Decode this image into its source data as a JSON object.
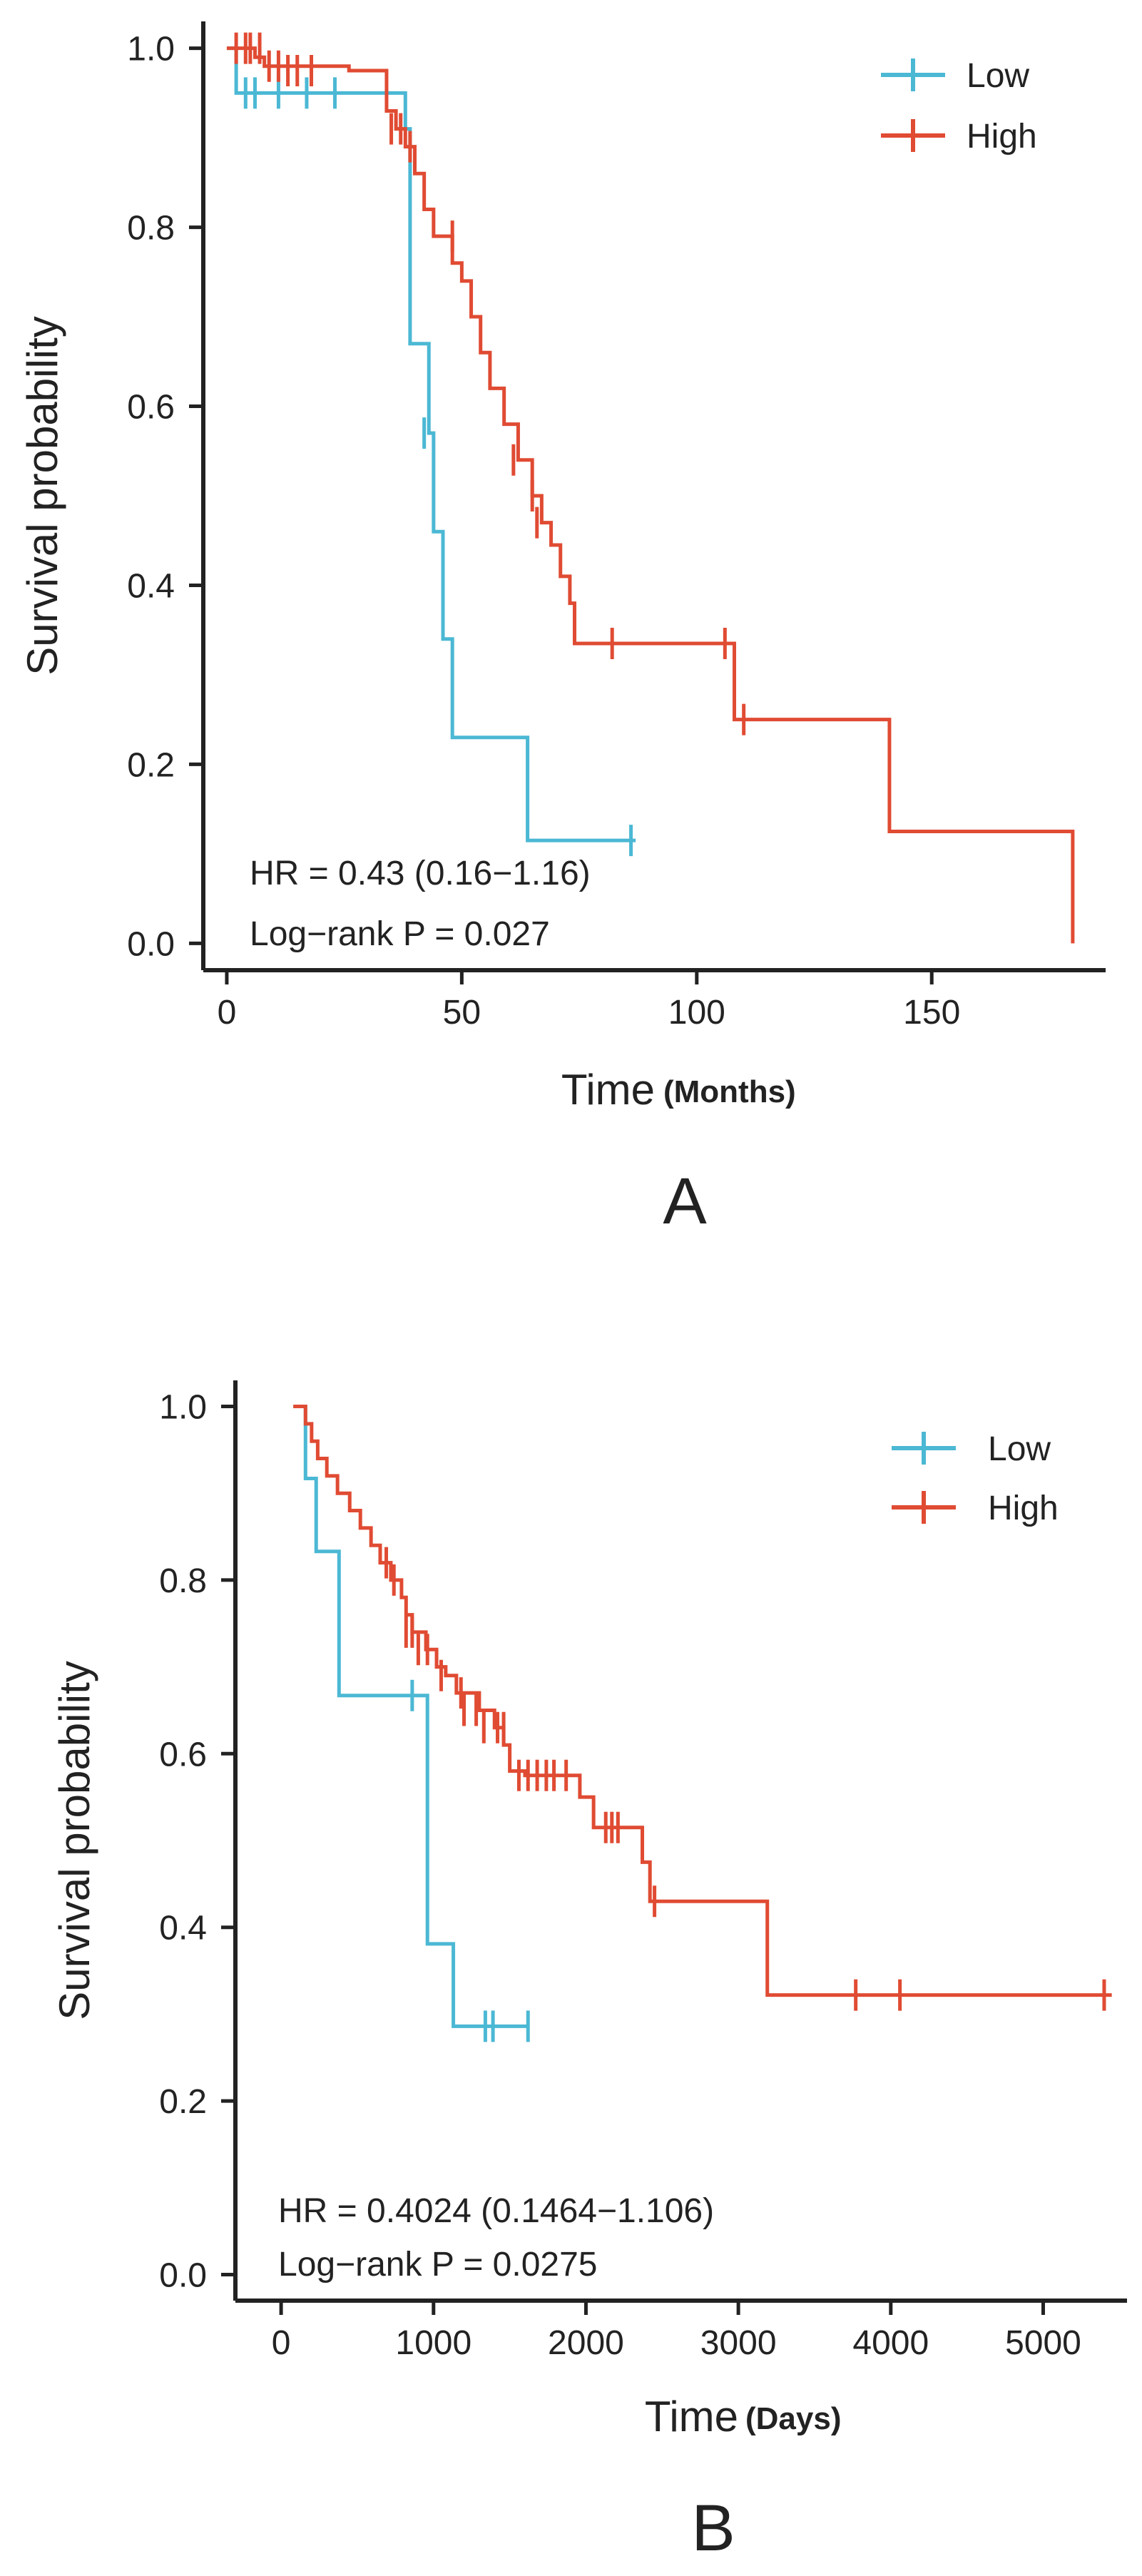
{
  "chart_data": [
    {
      "type": "line",
      "panel_label": "A",
      "ylabel": "Survival probability",
      "xlabel": "Time",
      "xunit": "(Months)",
      "xlim": [
        -5,
        187
      ],
      "ylim": [
        -0.03,
        1.03
      ],
      "xticks": [
        0,
        50,
        100,
        150
      ],
      "xtick_labels": [
        "0",
        "50",
        "100",
        "150"
      ],
      "yticks": [
        0,
        0.2,
        0.4,
        0.6,
        0.8,
        1.0
      ],
      "ytick_labels": [
        "0.0",
        "0.2",
        "0.4",
        "0.6",
        "0.8",
        "1.0"
      ],
      "legend_position": "top-right",
      "hr_text": "HR = 0.43 (0.16−1.16)",
      "p_text": "Log−rank P = 0.027",
      "series": [
        {
          "name": "Low",
          "color": "#4BB8D4",
          "steps": [
            [
              0,
              1.0
            ],
            [
              2,
              0.95
            ],
            [
              38,
              0.91
            ],
            [
              39,
              0.67
            ],
            [
              43,
              0.57
            ],
            [
              44,
              0.46
            ],
            [
              46,
              0.34
            ],
            [
              48,
              0.23
            ],
            [
              64,
              0.115
            ],
            [
              87,
              0.115
            ]
          ],
          "censor": [
            [
              4,
              0.95
            ],
            [
              6,
              0.95
            ],
            [
              11,
              0.95
            ],
            [
              17,
              0.95
            ],
            [
              23,
              0.95
            ],
            [
              42,
              0.57
            ],
            [
              86,
              0.115
            ]
          ]
        },
        {
          "name": "High",
          "color": "#E04B33",
          "steps": [
            [
              0,
              1.0
            ],
            [
              6,
              0.99
            ],
            [
              8,
              0.98
            ],
            [
              26,
              0.975
            ],
            [
              34,
              0.93
            ],
            [
              36,
              0.91
            ],
            [
              38,
              0.89
            ],
            [
              40,
              0.86
            ],
            [
              42,
              0.82
            ],
            [
              44,
              0.79
            ],
            [
              48,
              0.76
            ],
            [
              50,
              0.74
            ],
            [
              52,
              0.7
            ],
            [
              54,
              0.66
            ],
            [
              56,
              0.62
            ],
            [
              59,
              0.58
            ],
            [
              62,
              0.54
            ],
            [
              65,
              0.5
            ],
            [
              67,
              0.47
            ],
            [
              69,
              0.445
            ],
            [
              71,
              0.41
            ],
            [
              73,
              0.38
            ],
            [
              74,
              0.335
            ],
            [
              108,
              0.25
            ],
            [
              141,
              0.125
            ],
            [
              180,
              0.0
            ]
          ],
          "censor": [
            [
              2,
              1.0
            ],
            [
              4,
              1.0
            ],
            [
              5,
              1.0
            ],
            [
              7,
              1.0
            ],
            [
              9,
              0.98
            ],
            [
              11,
              0.98
            ],
            [
              13,
              0.975
            ],
            [
              15,
              0.975
            ],
            [
              18,
              0.975
            ],
            [
              35,
              0.91
            ],
            [
              37,
              0.91
            ],
            [
              39,
              0.89
            ],
            [
              48,
              0.79
            ],
            [
              61,
              0.54
            ],
            [
              65,
              0.5
            ],
            [
              66,
              0.47
            ],
            [
              82,
              0.335
            ],
            [
              106,
              0.335
            ],
            [
              110,
              0.25
            ]
          ]
        }
      ]
    },
    {
      "type": "line",
      "panel_label": "B",
      "ylabel": "Survival probability",
      "xlabel": "Time",
      "xunit": "(Days)",
      "xlim": [
        -300,
        5550
      ],
      "ylim": [
        -0.03,
        1.03
      ],
      "xticks": [
        0,
        1000,
        2000,
        3000,
        4000,
        5000
      ],
      "xtick_labels": [
        "0",
        "1000",
        "2000",
        "3000",
        "4000",
        "5000"
      ],
      "yticks": [
        0,
        0.2,
        0.4,
        0.6,
        0.8,
        1.0
      ],
      "ytick_labels": [
        "0.0",
        "0.2",
        "0.4",
        "0.6",
        "0.8",
        "1.0"
      ],
      "legend_position": "top-right",
      "hr_text": "HR = 0.4024 (0.1464−1.106)",
      "p_text": "Log−rank P = 0.0275",
      "series": [
        {
          "name": "Low",
          "color": "#4BB8D4",
          "steps": [
            [
              80,
              1.0
            ],
            [
              160,
              0.917
            ],
            [
              230,
              0.833
            ],
            [
              380,
              0.667
            ],
            [
              960,
              0.381
            ],
            [
              1130,
              0.286
            ],
            [
              1630,
              0.286
            ]
          ],
          "censor": [
            [
              860,
              0.667
            ],
            [
              1340,
              0.286
            ],
            [
              1390,
              0.286
            ],
            [
              1620,
              0.286
            ]
          ]
        },
        {
          "name": "High",
          "color": "#E04B33",
          "steps": [
            [
              80,
              1.0
            ],
            [
              160,
              0.98
            ],
            [
              200,
              0.96
            ],
            [
              240,
              0.94
            ],
            [
              300,
              0.92
            ],
            [
              370,
              0.9
            ],
            [
              450,
              0.88
            ],
            [
              520,
              0.86
            ],
            [
              590,
              0.84
            ],
            [
              650,
              0.82
            ],
            [
              720,
              0.8
            ],
            [
              790,
              0.78
            ],
            [
              820,
              0.76
            ],
            [
              860,
              0.74
            ],
            [
              950,
              0.72
            ],
            [
              1020,
              0.7
            ],
            [
              1080,
              0.69
            ],
            [
              1150,
              0.67
            ],
            [
              1300,
              0.65
            ],
            [
              1400,
              0.63
            ],
            [
              1460,
              0.61
            ],
            [
              1500,
              0.58
            ],
            [
              1600,
              0.575
            ],
            [
              1960,
              0.55
            ],
            [
              2050,
              0.515
            ],
            [
              2370,
              0.475
            ],
            [
              2420,
              0.43
            ],
            [
              3190,
              0.322
            ],
            [
              5450,
              0.322
            ]
          ],
          "censor": [
            [
              690,
              0.82
            ],
            [
              740,
              0.8
            ],
            [
              820,
              0.74
            ],
            [
              860,
              0.74
            ],
            [
              900,
              0.72
            ],
            [
              960,
              0.72
            ],
            [
              1050,
              0.69
            ],
            [
              1180,
              0.67
            ],
            [
              1200,
              0.65
            ],
            [
              1280,
              0.65
            ],
            [
              1330,
              0.63
            ],
            [
              1420,
              0.63
            ],
            [
              1460,
              0.63
            ],
            [
              1560,
              0.575
            ],
            [
              1620,
              0.575
            ],
            [
              1680,
              0.575
            ],
            [
              1740,
              0.575
            ],
            [
              1790,
              0.575
            ],
            [
              1870,
              0.575
            ],
            [
              2130,
              0.515
            ],
            [
              2170,
              0.515
            ],
            [
              2210,
              0.515
            ],
            [
              2450,
              0.43
            ],
            [
              3770,
              0.322
            ],
            [
              4060,
              0.322
            ],
            [
              5400,
              0.322
            ]
          ]
        }
      ]
    }
  ]
}
